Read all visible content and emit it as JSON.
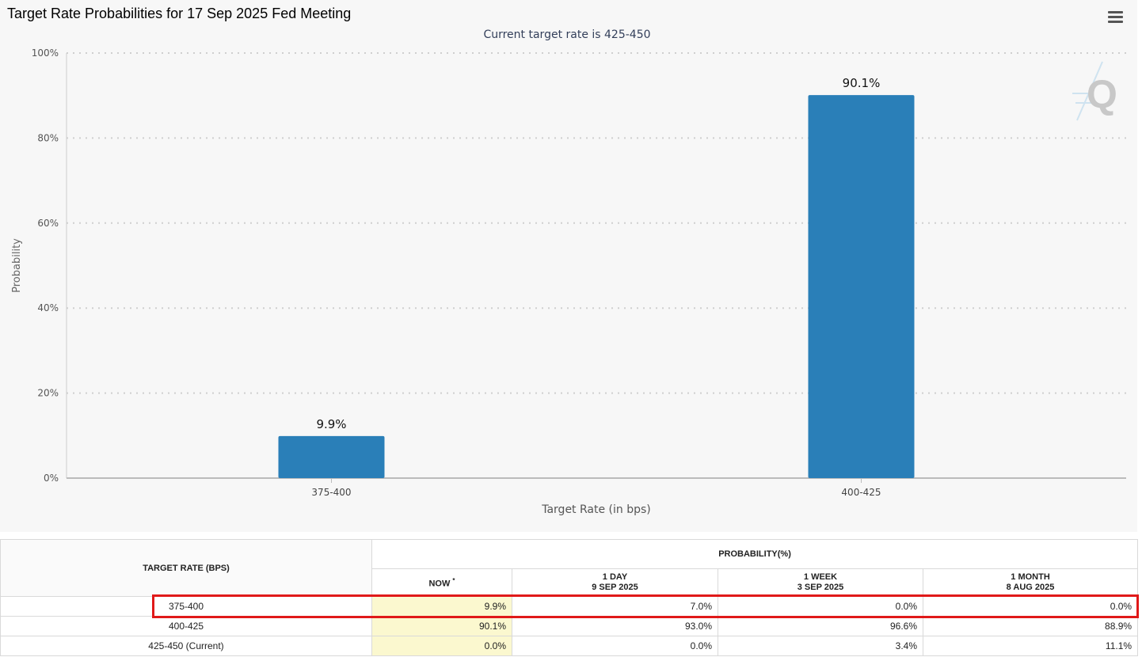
{
  "chart": {
    "title": "Target Rate Probabilities for 17 Sep 2025 Fed Meeting",
    "subtitle": "Current target rate is 425-450",
    "menu_icon": "hamburger-menu-icon",
    "watermark": "Q",
    "bar_color": "#2a7fb8"
  },
  "chart_data": {
    "type": "bar",
    "title": "Target Rate Probabilities for 17 Sep 2025 Fed Meeting",
    "subtitle": "Current target rate is 425-450",
    "xlabel": "Target Rate (in bps)",
    "ylabel": "Probability",
    "categories": [
      "375-400",
      "400-425"
    ],
    "values": [
      9.9,
      90.1
    ],
    "data_labels": [
      "9.9%",
      "90.1%"
    ],
    "ylim": [
      0,
      100
    ],
    "yticks": [
      "0%",
      "20%",
      "40%",
      "60%",
      "80%",
      "100%"
    ],
    "ytick_values": [
      0,
      20,
      40,
      60,
      80,
      100
    ],
    "grid": true,
    "legend": "none"
  },
  "table": {
    "rate_header": "TARGET RATE (BPS)",
    "prob_header": "PROBABILITY(%)",
    "columns": [
      {
        "line1": "NOW",
        "sup": "*",
        "line2": ""
      },
      {
        "line1": "1 DAY",
        "line2": "9 SEP 2025"
      },
      {
        "line1": "1 WEEK",
        "line2": "3 SEP 2025"
      },
      {
        "line1": "1 MONTH",
        "line2": "8 AUG 2025"
      }
    ],
    "rows": [
      {
        "rate": "375-400",
        "now": "9.9%",
        "day": "7.0%",
        "week": "0.0%",
        "month": "0.0%"
      },
      {
        "rate": "400-425",
        "now": "90.1%",
        "day": "93.0%",
        "week": "96.6%",
        "month": "88.9%"
      },
      {
        "rate": "425-450 (Current)",
        "now": "0.0%",
        "day": "0.0%",
        "week": "3.4%",
        "month": "11.1%"
      }
    ]
  },
  "highlight_color": "#e01919"
}
